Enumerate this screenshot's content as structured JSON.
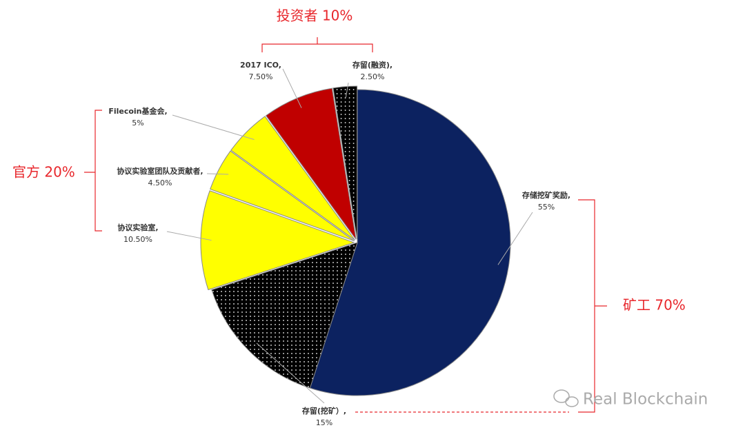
{
  "chart_data": {
    "type": "pie",
    "categories": [
      "存储挖矿奖励,",
      "存留(挖矿）,",
      "协议实验室,",
      "协议实验室团队及贡献者,",
      "Filecoin基金会,",
      "2017 ICO,",
      "存留(融资),"
    ],
    "values": [
      55,
      15,
      10.5,
      4.5,
      5,
      7.5,
      2.5
    ],
    "value_labels": [
      "55%",
      "15%",
      "10.50%",
      "4.50%",
      "5%",
      "7.50%",
      "2.50%"
    ],
    "colors": [
      "#0c2260",
      "#0c2260",
      "#ffff00",
      "#ffff00",
      "#ffff00",
      "#c00000",
      "#c00000"
    ],
    "dotted": [
      false,
      true,
      false,
      false,
      false,
      false,
      true
    ],
    "groups": [
      "投资者 10%",
      "官方 20%",
      "矿工 70%"
    ],
    "watermark": "Real Blockchain"
  }
}
